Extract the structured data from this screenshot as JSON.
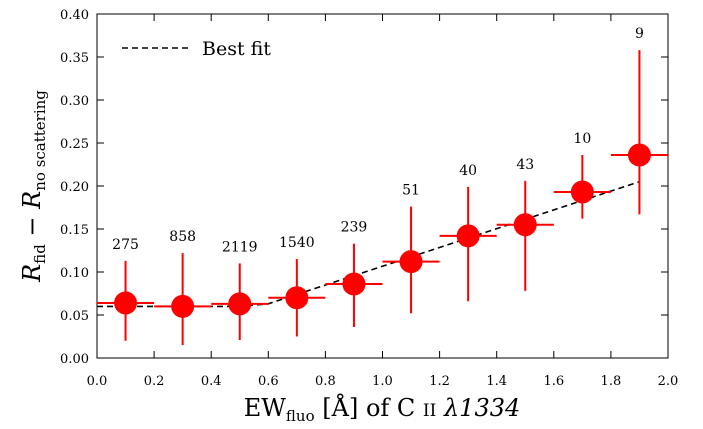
{
  "chart_data": {
    "type": "errorbar",
    "xlabel_parts": [
      "EW",
      "fluo",
      " [Å] of C ",
      "II",
      " λ1334"
    ],
    "ylabel_parts": [
      "R",
      "fid",
      " − R",
      "no scattering"
    ],
    "x": [
      0.1,
      0.3,
      0.5,
      0.7,
      0.9,
      1.1,
      1.3,
      1.5,
      1.7,
      1.9
    ],
    "xerr": 0.1,
    "values": [
      0.064,
      0.06,
      0.063,
      0.07,
      0.086,
      0.112,
      0.142,
      0.155,
      0.193,
      0.236
    ],
    "lower": [
      0.02,
      0.015,
      0.021,
      0.025,
      0.036,
      0.052,
      0.066,
      0.078,
      0.162,
      0.167
    ],
    "upper": [
      0.113,
      0.122,
      0.11,
      0.115,
      0.133,
      0.176,
      0.199,
      0.206,
      0.236,
      0.358
    ],
    "counts": [
      275,
      858,
      2119,
      1540,
      239,
      51,
      40,
      43,
      10,
      9
    ],
    "color": "#ff0000",
    "fit": {
      "name": "Best fit",
      "color": "#000000",
      "x": [
        0.0,
        0.5,
        0.6,
        1.9
      ],
      "values": [
        0.06,
        0.06,
        0.063,
        0.205
      ]
    },
    "xlim": [
      0.0,
      2.0
    ],
    "ylim": [
      0.0,
      0.4
    ],
    "xticks": [
      {
        "value": 0,
        "label": "0.0"
      },
      {
        "value": 0.2,
        "label": "0.2"
      },
      {
        "value": 0.4,
        "label": "0.4"
      },
      {
        "value": 0.6,
        "label": "0.6"
      },
      {
        "value": 0.8,
        "label": "0.8"
      },
      {
        "value": 1,
        "label": "1.0"
      },
      {
        "value": 1.2,
        "label": "1.2"
      },
      {
        "value": 1.4,
        "label": "1.4"
      },
      {
        "value": 1.6,
        "label": "1.6"
      },
      {
        "value": 1.8,
        "label": "1.8"
      },
      {
        "value": 2,
        "label": "2.0"
      }
    ],
    "yticks": [
      {
        "value": 0,
        "label": "0.00"
      },
      {
        "value": 0.05,
        "label": "0.05"
      },
      {
        "value": 0.1,
        "label": "0.10"
      },
      {
        "value": 0.15,
        "label": "0.15"
      },
      {
        "value": 0.2,
        "label": "0.20"
      },
      {
        "value": 0.25,
        "label": "0.25"
      },
      {
        "value": 0.3,
        "label": "0.30"
      },
      {
        "value": 0.35,
        "label": "0.35"
      },
      {
        "value": 0.4,
        "label": "0.40"
      }
    ],
    "legend": "upper left"
  }
}
